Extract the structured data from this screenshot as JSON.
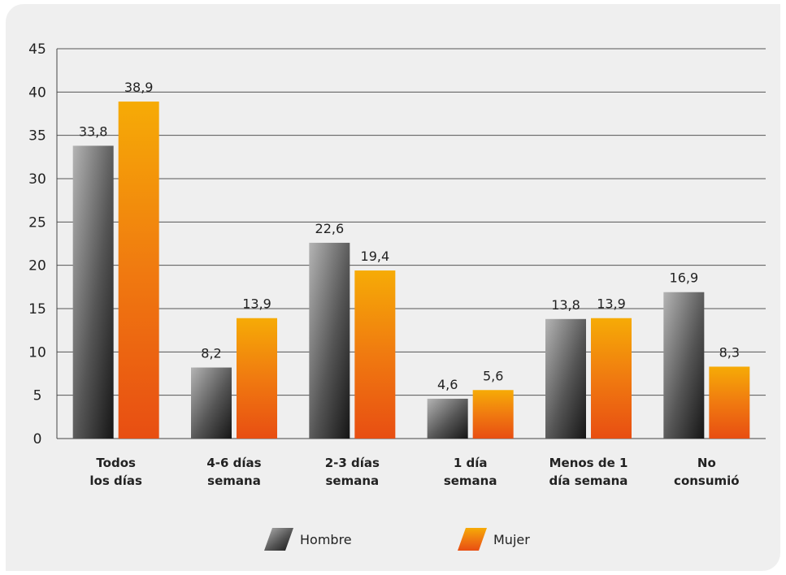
{
  "chart_data": {
    "type": "bar",
    "categories": [
      [
        "Todos",
        "los días"
      ],
      [
        "4-6 días",
        "semana"
      ],
      [
        "2-3 días",
        "semana"
      ],
      [
        "1 día",
        "semana"
      ],
      [
        "Menos de 1",
        "día semana"
      ],
      [
        "No",
        "consumió"
      ]
    ],
    "series": [
      {
        "name": "Hombre",
        "values": [
          33.8,
          8.2,
          22.6,
          4.6,
          13.8,
          16.9
        ],
        "labels": [
          "33,8",
          "8,2",
          "22,6",
          "4,6",
          "13,8",
          "16,9"
        ],
        "color": "#555555"
      },
      {
        "name": "Mujer",
        "values": [
          38.9,
          13.9,
          19.4,
          5.6,
          13.9,
          8.3
        ],
        "labels": [
          "38,9",
          "13,9",
          "19,4",
          "5,6",
          "13,9",
          "8,3"
        ],
        "color": "#f07a10"
      }
    ],
    "title": "",
    "xlabel": "",
    "ylabel": "",
    "ylim": [
      0,
      45
    ],
    "yticks": [
      0,
      5,
      10,
      15,
      20,
      25,
      30,
      35,
      40,
      45
    ],
    "grid": true,
    "legend_position": "bottom"
  }
}
